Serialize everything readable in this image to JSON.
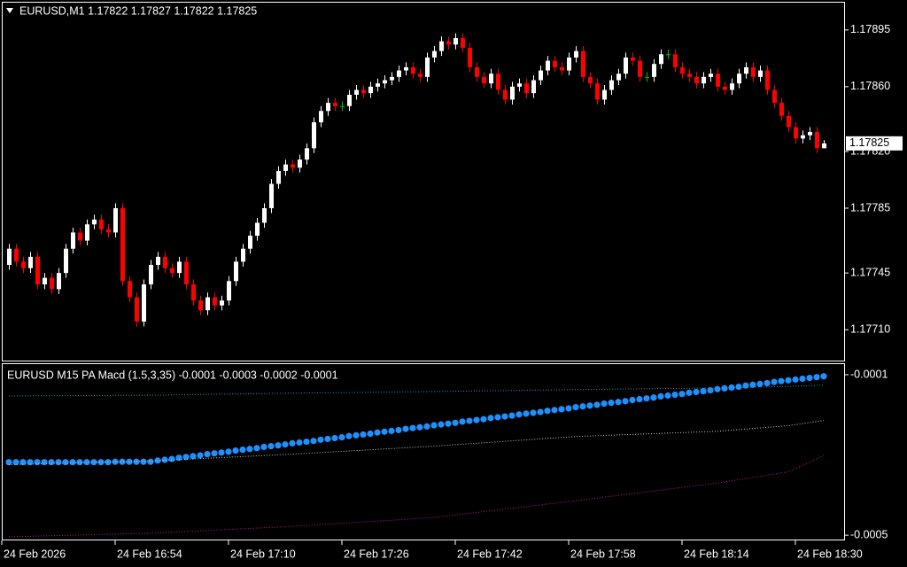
{
  "chart_data": [
    {
      "type": "candlestick",
      "title": "EURUSD,M1  1.17822 1.17827 1.17822 1.17825",
      "x": [
        0,
        1,
        2,
        3,
        4,
        5,
        6,
        7,
        8,
        9,
        10,
        11,
        12,
        13,
        14,
        15,
        16,
        17,
        18,
        19,
        20,
        21,
        22,
        23,
        24,
        25,
        26,
        27,
        28,
        29,
        30,
        31,
        32,
        33,
        34,
        35,
        36,
        37,
        38,
        39,
        40,
        41,
        42,
        43,
        44,
        45,
        46,
        47,
        48,
        49,
        50,
        51,
        52,
        53,
        54,
        55,
        56,
        57,
        58,
        59,
        60,
        61,
        62,
        63,
        64,
        65,
        66,
        67,
        68,
        69,
        70,
        71,
        72,
        73,
        74,
        75,
        76,
        77,
        78,
        79,
        80,
        81,
        82,
        83,
        84,
        85,
        86,
        87,
        88,
        89,
        90,
        91,
        92,
        93,
        94,
        95,
        96,
        97,
        98,
        99,
        100,
        101,
        102,
        103,
        104,
        105,
        106,
        107,
        108,
        109,
        110,
        111,
        112,
        113,
        114,
        115
      ],
      "open": [
        1.1775,
        1.1776,
        1.17752,
        1.17748,
        1.17755,
        1.17738,
        1.17742,
        1.17735,
        1.17745,
        1.1776,
        1.1777,
        1.17765,
        1.17775,
        1.17778,
        1.17772,
        1.1777,
        1.17785,
        1.1774,
        1.1773,
        1.17715,
        1.17738,
        1.1775,
        1.17755,
        1.17748,
        1.17745,
        1.17752,
        1.17738,
        1.17728,
        1.17722,
        1.1773,
        1.17725,
        1.17728,
        1.1774,
        1.17752,
        1.1776,
        1.17768,
        1.17776,
        1.17785,
        1.178,
        1.17808,
        1.17812,
        1.1781,
        1.17815,
        1.17822,
        1.17838,
        1.17845,
        1.1785,
        1.17848,
        1.17848,
        1.17855,
        1.17858,
        1.17856,
        1.1786,
        1.17862,
        1.17864,
        1.17866,
        1.1787,
        1.17872,
        1.17868,
        1.17866,
        1.17878,
        1.17882,
        1.17888,
        1.17886,
        1.1789,
        1.17884,
        1.17872,
        1.17866,
        1.17862,
        1.17868,
        1.17858,
        1.17852,
        1.1786,
        1.17862,
        1.17856,
        1.17864,
        1.1787,
        1.17876,
        1.17872,
        1.1787,
        1.17878,
        1.17882,
        1.17866,
        1.17862,
        1.17852,
        1.17858,
        1.17864,
        1.17868,
        1.17878,
        1.17876,
        1.17866,
        1.17866,
        1.17874,
        1.1788,
        1.1788,
        1.17872,
        1.17868,
        1.17866,
        1.17862,
        1.17866,
        1.17868,
        1.1786,
        1.17858,
        1.17862,
        1.17868,
        1.17872,
        1.17866,
        1.1787,
        1.17858,
        1.1785,
        1.17842,
        1.17835,
        1.17828,
        1.1783,
        1.17832,
        1.17822
      ],
      "high": [
        1.17763,
        1.17763,
        1.17755,
        1.17758,
        1.17758,
        1.17745,
        1.17745,
        1.17748,
        1.17763,
        1.17773,
        1.17773,
        1.17778,
        1.17781,
        1.17781,
        1.17775,
        1.17788,
        1.17788,
        1.17743,
        1.17733,
        1.17741,
        1.17753,
        1.17758,
        1.17758,
        1.17751,
        1.17755,
        1.17755,
        1.17741,
        1.17731,
        1.17733,
        1.17733,
        1.17731,
        1.17743,
        1.17755,
        1.17763,
        1.17771,
        1.17779,
        1.17788,
        1.17803,
        1.17811,
        1.17815,
        1.17815,
        1.17818,
        1.17825,
        1.17841,
        1.17848,
        1.17853,
        1.17853,
        1.17851,
        1.17858,
        1.17861,
        1.17861,
        1.17863,
        1.17865,
        1.17867,
        1.17869,
        1.17873,
        1.17875,
        1.17875,
        1.17871,
        1.17881,
        1.17885,
        1.17891,
        1.17891,
        1.17893,
        1.17893,
        1.17887,
        1.17875,
        1.17869,
        1.17871,
        1.17871,
        1.17861,
        1.17863,
        1.17865,
        1.17865,
        1.17867,
        1.17873,
        1.17879,
        1.17879,
        1.17875,
        1.17881,
        1.17885,
        1.17885,
        1.17869,
        1.17865,
        1.17861,
        1.17867,
        1.17871,
        1.17881,
        1.17881,
        1.17879,
        1.17869,
        1.17877,
        1.17883,
        1.17883,
        1.17883,
        1.17875,
        1.17871,
        1.17869,
        1.17869,
        1.17871,
        1.17871,
        1.17863,
        1.17865,
        1.17871,
        1.17875,
        1.17875,
        1.17873,
        1.17873,
        1.17861,
        1.17853,
        1.17845,
        1.17838,
        1.17833,
        1.17835,
        1.17835,
        1.17827
      ],
      "low": [
        1.17747,
        1.17749,
        1.17745,
        1.17745,
        1.17735,
        1.17735,
        1.17732,
        1.17732,
        1.17742,
        1.17757,
        1.17762,
        1.17762,
        1.17772,
        1.17769,
        1.17767,
        1.17767,
        1.17737,
        1.17727,
        1.17712,
        1.17712,
        1.17735,
        1.17747,
        1.17745,
        1.17742,
        1.17742,
        1.17735,
        1.17725,
        1.17719,
        1.17719,
        1.17722,
        1.17722,
        1.17725,
        1.17737,
        1.17749,
        1.17757,
        1.17765,
        1.17773,
        1.17782,
        1.17797,
        1.17805,
        1.17807,
        1.17807,
        1.17812,
        1.17819,
        1.17835,
        1.17842,
        1.17845,
        1.17845,
        1.17845,
        1.17852,
        1.17853,
        1.17853,
        1.17857,
        1.17859,
        1.17861,
        1.17863,
        1.17867,
        1.17865,
        1.17863,
        1.17863,
        1.17875,
        1.17879,
        1.17883,
        1.17883,
        1.17881,
        1.17869,
        1.17863,
        1.17859,
        1.17859,
        1.17855,
        1.17849,
        1.17849,
        1.17857,
        1.17853,
        1.17853,
        1.17861,
        1.17867,
        1.17869,
        1.17867,
        1.17867,
        1.17875,
        1.17863,
        1.17859,
        1.17849,
        1.17849,
        1.17855,
        1.17861,
        1.17865,
        1.17873,
        1.17863,
        1.17863,
        1.17863,
        1.17871,
        1.17877,
        1.17869,
        1.17865,
        1.17863,
        1.17859,
        1.17859,
        1.17863,
        1.17857,
        1.17855,
        1.17855,
        1.17859,
        1.17865,
        1.17863,
        1.17863,
        1.17855,
        1.17847,
        1.17839,
        1.17832,
        1.17825,
        1.17825,
        1.17827,
        1.17819,
        1.17822
      ],
      "close": [
        1.1776,
        1.17752,
        1.17748,
        1.17755,
        1.17738,
        1.17742,
        1.17735,
        1.17745,
        1.1776,
        1.1777,
        1.17765,
        1.17775,
        1.17778,
        1.17772,
        1.1777,
        1.17785,
        1.1774,
        1.1773,
        1.17715,
        1.17738,
        1.1775,
        1.17755,
        1.17748,
        1.17745,
        1.17752,
        1.17738,
        1.17728,
        1.17722,
        1.1773,
        1.17725,
        1.17728,
        1.1774,
        1.17752,
        1.1776,
        1.17768,
        1.17776,
        1.17785,
        1.178,
        1.17808,
        1.17812,
        1.1781,
        1.17815,
        1.17822,
        1.17838,
        1.17845,
        1.1785,
        1.17848,
        1.17848,
        1.17855,
        1.17858,
        1.17856,
        1.1786,
        1.17862,
        1.17864,
        1.17866,
        1.1787,
        1.17872,
        1.17868,
        1.17866,
        1.17878,
        1.17882,
        1.17888,
        1.17886,
        1.1789,
        1.17884,
        1.17872,
        1.17866,
        1.17862,
        1.17868,
        1.17858,
        1.17852,
        1.1786,
        1.17862,
        1.17856,
        1.17864,
        1.1787,
        1.17876,
        1.17872,
        1.1787,
        1.17878,
        1.17882,
        1.17866,
        1.17862,
        1.17852,
        1.17858,
        1.17864,
        1.17868,
        1.17878,
        1.17876,
        1.17866,
        1.17866,
        1.17874,
        1.1788,
        1.1788,
        1.17872,
        1.17868,
        1.17866,
        1.17862,
        1.17866,
        1.17868,
        1.1786,
        1.17858,
        1.17862,
        1.17868,
        1.17872,
        1.17866,
        1.1787,
        1.17858,
        1.1785,
        1.17842,
        1.17835,
        1.17828,
        1.1783,
        1.17832,
        1.17822,
        1.17825
      ],
      "up_color": "#ffffff",
      "down_color": "#ff0000",
      "doji_color": "#00c000",
      "xlim": [
        -1,
        118
      ],
      "xticks": [
        {
          "value": -1,
          "label": "24 Feb 2026"
        },
        {
          "value": 15,
          "label": "24 Feb 16:54"
        },
        {
          "value": 31,
          "label": "24 Feb 17:10"
        },
        {
          "value": 47,
          "label": "24 Feb 17:26"
        },
        {
          "value": 63,
          "label": "24 Feb 17:42"
        },
        {
          "value": 79,
          "label": "24 Feb 17:58"
        },
        {
          "value": 95,
          "label": "24 Feb 18:14"
        },
        {
          "value": 111,
          "label": "24 Feb 18:30"
        }
      ],
      "ylim": [
        1.176904,
        1.179124
      ],
      "yticks": [
        1.17895,
        {
          "value": 1.1786,
          "label": "1.17860"
        },
        {
          "value": 1.1782,
          "label": "1.17820"
        },
        1.17785,
        1.17745,
        {
          "value": 1.1771,
          "label": "1.17710"
        }
      ],
      "current_price": 1.17825
    },
    {
      "type": "line",
      "title": "EURUSD M15 PA Macd (1.5,3,35) -0.0001 -0.0003 -0.0002 -0.0001",
      "ylim": [
        -0.000513,
        -7.36e-05
      ],
      "yticks": [
        -0.0001,
        -0.0005
      ],
      "series": [
        {
          "color": "#1e90ff",
          "style": "dots",
          "x": [
            0,
            1,
            2,
            3,
            4,
            5,
            6,
            7,
            8,
            9,
            10,
            11,
            12,
            13,
            14,
            15,
            16,
            17,
            18,
            19,
            20,
            21,
            22,
            23,
            24,
            25,
            26,
            27,
            28,
            29,
            30,
            31,
            32,
            33,
            34,
            35,
            36,
            37,
            38,
            39,
            40,
            41,
            42,
            43,
            44,
            45,
            46,
            47,
            48,
            49,
            50,
            51,
            52,
            53,
            54,
            55,
            56,
            57,
            58,
            59,
            60,
            61,
            62,
            63,
            64,
            65,
            66,
            67,
            68,
            69,
            70,
            71,
            72,
            73,
            74,
            75,
            76,
            77,
            78,
            79,
            80,
            81,
            82,
            83,
            84,
            85,
            86,
            87,
            88,
            89,
            90,
            91,
            92,
            93,
            94,
            95,
            96,
            97,
            98,
            99,
            100,
            101,
            102,
            103,
            104,
            105,
            106,
            107,
            108,
            109,
            110,
            111,
            112,
            113,
            114,
            115
          ],
          "values": [
            -0.000318,
            -0.000318,
            -0.000318,
            -0.000318,
            -0.000318,
            -0.000318,
            -0.000318,
            -0.000318,
            -0.000318,
            -0.000318,
            -0.000318,
            -0.000318,
            -0.000318,
            -0.000318,
            -0.000318,
            -0.000317,
            -0.000317,
            -0.000317,
            -0.000317,
            -0.000317,
            -0.000317,
            -0.000314,
            -0.000312,
            -0.00031,
            -0.000307,
            -0.000305,
            -0.000303,
            -0.000301,
            -0.000298,
            -0.000296,
            -0.000294,
            -0.000292,
            -0.000289,
            -0.000287,
            -0.000285,
            -0.000283,
            -0.00028,
            -0.000278,
            -0.000276,
            -0.000274,
            -0.000271,
            -0.000269,
            -0.000267,
            -0.000265,
            -0.000262,
            -0.00026,
            -0.000258,
            -0.000256,
            -0.000253,
            -0.000251,
            -0.000249,
            -0.000247,
            -0.000244,
            -0.000242,
            -0.00024,
            -0.000238,
            -0.000235,
            -0.000233,
            -0.000231,
            -0.000229,
            -0.000226,
            -0.000224,
            -0.000222,
            -0.00022,
            -0.000217,
            -0.000215,
            -0.000213,
            -0.000211,
            -0.000208,
            -0.000206,
            -0.000204,
            -0.000202,
            -0.000199,
            -0.000197,
            -0.000195,
            -0.000193,
            -0.00019,
            -0.000188,
            -0.000186,
            -0.000184,
            -0.000181,
            -0.000179,
            -0.000177,
            -0.000175,
            -0.000172,
            -0.00017,
            -0.000168,
            -0.000166,
            -0.000163,
            -0.000161,
            -0.000159,
            -0.000157,
            -0.000154,
            -0.000152,
            -0.00015,
            -0.000148,
            -0.000145,
            -0.000143,
            -0.000141,
            -0.000139,
            -0.000136,
            -0.000134,
            -0.000132,
            -0.00013,
            -0.000127,
            -0.000125,
            -0.000123,
            -0.000121,
            -0.000118,
            -0.000116,
            -0.000114,
            -0.000112,
            -0.00011,
            -0.000108,
            -0.000106,
            -0.000104
          ]
        },
        {
          "color": "#2a9aa8",
          "style": "dotted",
          "x": [
            0,
            20,
            40,
            60,
            80,
            100,
            110,
            115
          ],
          "values": [
            -0.000153,
            -0.000151,
            -0.000146,
            -0.000142,
            -0.000137,
            -0.000133,
            -0.000129,
            -0.000126
          ]
        },
        {
          "color": "#c8c8c8",
          "style": "dotted",
          "x": [
            0,
            20,
            40,
            60,
            80,
            100,
            110,
            115
          ],
          "values": [
            -0.000324,
            -0.000315,
            -0.000298,
            -0.000278,
            -0.000254,
            -0.000241,
            -0.000227,
            -0.000214
          ]
        },
        {
          "color": "#b0209a",
          "style": "dotted",
          "x": [
            0,
            20,
            40,
            60,
            80,
            100,
            110,
            115
          ],
          "values": [
            -0.000504,
            -0.000495,
            -0.000478,
            -0.000456,
            -0.000414,
            -0.00037,
            -0.000342,
            -0.000302
          ]
        }
      ]
    }
  ]
}
